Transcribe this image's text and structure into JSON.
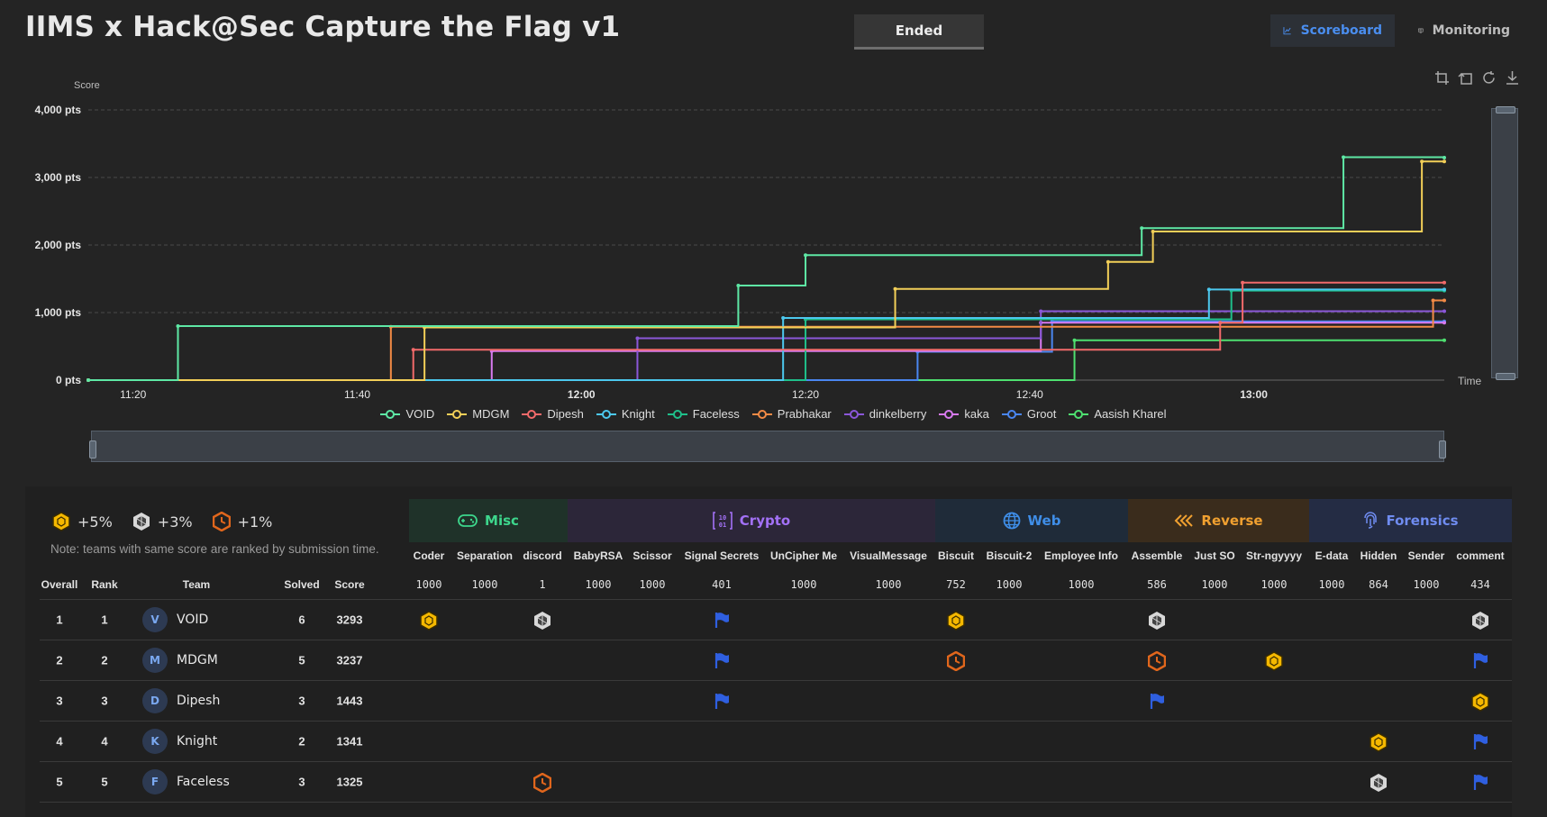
{
  "header": {
    "title": "IIMS x Hack@Sec Capture the Flag v1",
    "status": "Ended",
    "nav": [
      {
        "label": "Scoreboard",
        "icon": "chart-line-icon",
        "active": true
      },
      {
        "label": "Monitoring",
        "icon": "monitor-eye-icon",
        "active": false
      }
    ]
  },
  "chart_data": {
    "type": "line",
    "step": true,
    "ylabel": "Score",
    "xlabel": "Time",
    "ylim": [
      0,
      4000
    ],
    "y_ticks": [
      "4,000 pts",
      "3,000 pts",
      "2,000 pts",
      "1,000 pts",
      "0 pts"
    ],
    "x_ticks": [
      "11:20",
      "11:40",
      "12:00",
      "12:20",
      "12:40",
      "13:00"
    ],
    "xlim": [
      "11:16",
      "13:17"
    ],
    "grid": true,
    "legend_position": "bottom",
    "series": [
      {
        "name": "VOID",
        "color": "#5ee8a5",
        "points": [
          [
            "11:16",
            0
          ],
          [
            "11:24",
            800
          ],
          [
            "11:54",
            800
          ],
          [
            "12:14",
            1400
          ],
          [
            "12:20",
            1850
          ],
          [
            "12:50",
            2250
          ],
          [
            "13:08",
            3300
          ],
          [
            "13:15",
            3300
          ],
          [
            "13:17",
            3293
          ]
        ]
      },
      {
        "name": "MDGM",
        "color": "#f2cf58",
        "points": [
          [
            "11:16",
            0
          ],
          [
            "11:46",
            0
          ],
          [
            "11:46",
            780
          ],
          [
            "12:28",
            780
          ],
          [
            "12:28",
            1350
          ],
          [
            "12:47",
            1350
          ],
          [
            "12:47",
            1750
          ],
          [
            "12:51",
            2200
          ],
          [
            "13:15",
            2200
          ],
          [
            "13:15",
            3237
          ],
          [
            "13:17",
            3237
          ]
        ]
      },
      {
        "name": "Dipesh",
        "color": "#f26a6a",
        "points": [
          [
            "11:16",
            0
          ],
          [
            "11:45",
            0
          ],
          [
            "11:45",
            450
          ],
          [
            "12:57",
            450
          ],
          [
            "12:57",
            850
          ],
          [
            "12:59",
            850
          ],
          [
            "12:59",
            1443
          ],
          [
            "13:17",
            1443
          ]
        ]
      },
      {
        "name": "Knight",
        "color": "#4cc8ee",
        "points": [
          [
            "11:16",
            0
          ],
          [
            "12:18",
            0
          ],
          [
            "12:18",
            920
          ],
          [
            "12:56",
            920
          ],
          [
            "12:56",
            1341
          ],
          [
            "13:17",
            1341
          ]
        ]
      },
      {
        "name": "Faceless",
        "color": "#1fbf8a",
        "points": [
          [
            "11:16",
            0
          ],
          [
            "12:20",
            0
          ],
          [
            "12:20",
            900
          ],
          [
            "12:58",
            900
          ],
          [
            "12:58",
            1325
          ],
          [
            "13:17",
            1325
          ]
        ]
      },
      {
        "name": "Prabhakar",
        "color": "#f28a45",
        "points": [
          [
            "11:16",
            0
          ],
          [
            "11:43",
            0
          ],
          [
            "11:43",
            790
          ],
          [
            "13:16",
            790
          ],
          [
            "13:16",
            1180
          ],
          [
            "13:17",
            1180
          ]
        ]
      },
      {
        "name": "dinkelberry",
        "color": "#8b57d9",
        "points": [
          [
            "11:16",
            0
          ],
          [
            "12:05",
            0
          ],
          [
            "12:05",
            620
          ],
          [
            "12:41",
            620
          ],
          [
            "12:41",
            1020
          ],
          [
            "13:17",
            1020
          ]
        ]
      },
      {
        "name": "kaka",
        "color": "#d87af0",
        "points": [
          [
            "11:16",
            0
          ],
          [
            "11:52",
            0
          ],
          [
            "11:52",
            430
          ],
          [
            "12:41",
            430
          ],
          [
            "12:41",
            850
          ],
          [
            "13:17",
            850
          ]
        ]
      },
      {
        "name": "Groot",
        "color": "#4a86f0",
        "points": [
          [
            "11:16",
            0
          ],
          [
            "12:30",
            0
          ],
          [
            "12:30",
            420
          ],
          [
            "12:42",
            420
          ],
          [
            "12:42",
            870
          ],
          [
            "13:17",
            870
          ]
        ]
      },
      {
        "name": "Aasish Kharel",
        "color": "#4ee070",
        "points": [
          [
            "11:16",
            0
          ],
          [
            "12:44",
            0
          ],
          [
            "12:44",
            590
          ],
          [
            "13:17",
            590
          ]
        ]
      }
    ]
  },
  "scoreboard": {
    "medals": [
      {
        "label": "+5%",
        "color": "#f5b800",
        "icon": "gold-medal-icon"
      },
      {
        "label": "+3%",
        "color": "#d8d8d8",
        "icon": "silver-medal-icon"
      },
      {
        "label": "+1%",
        "color": "#e0661c",
        "icon": "bronze-medal-icon"
      }
    ],
    "note": "Note: teams with same score are ranked by submission time.",
    "categories": [
      {
        "name": "Misc",
        "color": "#3dd68c",
        "bg": "#1f3229",
        "icon": "gamepad-icon"
      },
      {
        "name": "Crypto",
        "color": "#a371f7",
        "bg": "#2c2639",
        "icon": "binary-icon"
      },
      {
        "name": "Web",
        "color": "#3f8ee8",
        "bg": "#1f2b39",
        "icon": "globe-icon"
      },
      {
        "name": "Reverse",
        "color": "#f0a030",
        "bg": "#3a2c1c",
        "icon": "chevrons-left-icon"
      },
      {
        "name": "Forensics",
        "color": "#6f8cf0",
        "bg": "#242c44",
        "icon": "fingerprint-icon"
      }
    ],
    "columns": {
      "overall": "Overall",
      "rank": "Rank",
      "team": "Team",
      "solved": "Solved",
      "score": "Score"
    },
    "challenges": [
      {
        "name": "Coder",
        "points": "1000"
      },
      {
        "name": "Separation",
        "points": "1000"
      },
      {
        "name": "discord",
        "points": "1"
      },
      {
        "name": "BabyRSA",
        "points": "1000"
      },
      {
        "name": "Scissor",
        "points": "1000"
      },
      {
        "name": "Signal Secrets",
        "points": "401"
      },
      {
        "name": "UnCipher Me",
        "points": "1000"
      },
      {
        "name": "VisualMessage",
        "points": "1000"
      },
      {
        "name": "Biscuit",
        "points": "752"
      },
      {
        "name": "Biscuit-2",
        "points": "1000"
      },
      {
        "name": "Employee Info",
        "points": "1000"
      },
      {
        "name": "Assemble",
        "points": "586"
      },
      {
        "name": "Just SO",
        "points": "1000"
      },
      {
        "name": "Str-ngyyyy",
        "points": "1000"
      },
      {
        "name": "E-data",
        "points": "1000"
      },
      {
        "name": "Hidden",
        "points": "864"
      },
      {
        "name": "Sender",
        "points": "1000"
      },
      {
        "name": "comment",
        "points": "434"
      }
    ],
    "rows": [
      {
        "overall": "1",
        "rank": "1",
        "initial": "V",
        "team": "VOID",
        "solved": "6",
        "score": "3293",
        "solves": {
          "0": "gold",
          "2": "silver",
          "5": "flag",
          "8": "gold",
          "11": "silver",
          "17": "silver"
        }
      },
      {
        "overall": "2",
        "rank": "2",
        "initial": "M",
        "team": "MDGM",
        "solved": "5",
        "score": "3237",
        "solves": {
          "5": "flag",
          "8": "bronze",
          "11": "bronze",
          "13": "gold",
          "17": "flag"
        }
      },
      {
        "overall": "3",
        "rank": "3",
        "initial": "D",
        "team": "Dipesh",
        "solved": "3",
        "score": "1443",
        "solves": {
          "5": "flag",
          "11": "flag",
          "17": "gold"
        }
      },
      {
        "overall": "4",
        "rank": "4",
        "initial": "K",
        "team": "Knight",
        "solved": "2",
        "score": "1341",
        "solves": {
          "15": "gold",
          "17": "flag"
        }
      },
      {
        "overall": "5",
        "rank": "5",
        "initial": "F",
        "team": "Faceless",
        "solved": "3",
        "score": "1325",
        "solves": {
          "2": "bronze",
          "15": "silver",
          "17": "flag"
        }
      }
    ]
  }
}
